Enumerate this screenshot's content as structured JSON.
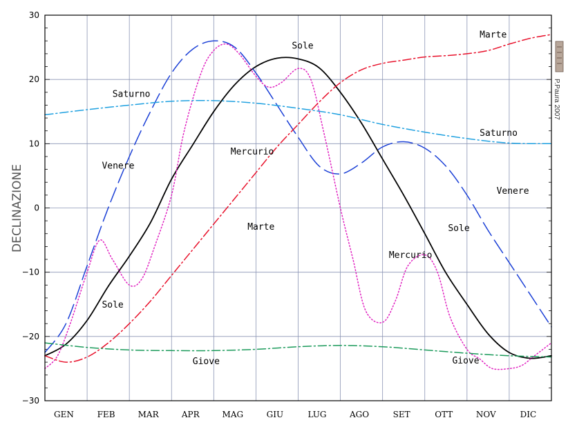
{
  "chart_data": {
    "type": "line",
    "title": "",
    "xlabel": "",
    "ylabel": "DECLINAZIONE",
    "ylim": [
      -30,
      30
    ],
    "xlim": [
      0,
      12
    ],
    "yticks": [
      30,
      20,
      10,
      0,
      -10,
      -20,
      -30
    ],
    "ytick_labels": [
      "30",
      "20",
      "10",
      "0",
      "−10",
      "−20",
      "−30"
    ],
    "months": [
      "GEN",
      "FEB",
      "MAR",
      "APR",
      "MAG",
      "GIU",
      "LUG",
      "AGO",
      "SET",
      "OTT",
      "NOV",
      "DIC"
    ],
    "grid": true,
    "credit": "P.Paura 2007",
    "series": [
      {
        "name": "Sole",
        "color": "#000000",
        "dash": "solid",
        "x": [
          0,
          0.5,
          1,
          1.5,
          2,
          2.5,
          3,
          3.5,
          4,
          4.5,
          5,
          5.5,
          6,
          6.5,
          7,
          7.5,
          8,
          8.5,
          9,
          9.5,
          10,
          10.5,
          11,
          11.5,
          12
        ],
        "y": [
          -23,
          -21.2,
          -17.5,
          -12.2,
          -7.5,
          -2.3,
          4.5,
          9.8,
          15,
          19.2,
          22,
          23.3,
          23.2,
          21.8,
          18,
          13.2,
          7.6,
          2,
          -4,
          -10.1,
          -15,
          -19.6,
          -22.5,
          -23.4,
          -23
        ]
      },
      {
        "name": "Venere",
        "color": "#1a3fd6",
        "dash": "long-dash",
        "x": [
          0,
          0.5,
          1,
          1.5,
          2,
          2.5,
          3,
          3.5,
          4,
          4.5,
          5,
          5.5,
          6,
          6.5,
          7,
          7.5,
          8,
          8.5,
          9,
          9.5,
          10,
          10.5,
          11,
          11.5,
          12
        ],
        "y": [
          -22.5,
          -18,
          -9,
          0,
          8,
          15,
          21,
          24.7,
          26,
          25,
          21,
          16,
          11,
          6.5,
          5.3,
          7,
          9.5,
          10.3,
          9.3,
          6.5,
          2,
          -3.5,
          -8.5,
          -13.5,
          -18.5
        ]
      },
      {
        "name": "Mercurio",
        "color": "#e020c0",
        "dash": "dotted",
        "x": [
          0,
          0.3,
          0.6,
          1,
          1.3,
          1.6,
          2,
          2.3,
          2.6,
          3,
          3.3,
          3.7,
          4,
          4.3,
          4.6,
          5,
          5.3,
          5.6,
          6,
          6.3,
          6.6,
          7,
          7.3,
          7.6,
          8,
          8.3,
          8.6,
          9,
          9.3,
          9.6,
          10,
          10.3,
          10.6,
          11,
          11.3,
          11.6,
          12
        ],
        "y": [
          -25,
          -23,
          -18,
          -10,
          -5,
          -8,
          -12,
          -11,
          -6,
          2,
          12,
          21,
          24.5,
          25.5,
          24,
          20.5,
          18.8,
          19.5,
          21.7,
          20,
          12,
          0,
          -8,
          -16,
          -17.8,
          -14.5,
          -9,
          -7.3,
          -10,
          -17,
          -22,
          -23.5,
          -25,
          -25,
          -24.5,
          -23,
          -21
        ]
      },
      {
        "name": "Marte",
        "color": "#e8102a",
        "dash": "dash-dot",
        "x": [
          0,
          0.5,
          1,
          1.5,
          2,
          2.5,
          3,
          3.5,
          4,
          4.5,
          5,
          5.5,
          6,
          6.5,
          7,
          7.5,
          8,
          8.5,
          9,
          9.5,
          10,
          10.5,
          11,
          11.5,
          12
        ],
        "y": [
          -23,
          -24,
          -23.2,
          -21,
          -18,
          -14.5,
          -10.5,
          -6.5,
          -2.5,
          1.5,
          5.5,
          9.5,
          13,
          16.5,
          19.5,
          21.5,
          22.5,
          23,
          23.5,
          23.7,
          24,
          24.5,
          25.5,
          26.4,
          27
        ]
      },
      {
        "name": "Saturno",
        "color": "#1ea0e0",
        "dash": "dash-dot",
        "x": [
          0,
          1,
          2,
          3,
          4,
          5,
          6,
          7,
          8,
          9,
          10,
          11,
          12
        ],
        "y": [
          14.5,
          15.3,
          16,
          16.6,
          16.7,
          16.3,
          15.5,
          14.5,
          13,
          11.8,
          10.8,
          10.1,
          10
        ]
      },
      {
        "name": "Giove",
        "color": "#1a9a5a",
        "dash": "dash-dot",
        "x": [
          0,
          1,
          2,
          3,
          4,
          5,
          6,
          7,
          8,
          9,
          10,
          11,
          12
        ],
        "y": [
          -21,
          -21.7,
          -22.1,
          -22.2,
          -22.2,
          -22,
          -21.6,
          -21.4,
          -21.6,
          -22.1,
          -22.6,
          -23,
          -23.2
        ]
      }
    ],
    "annotations": [
      {
        "text": "Sole",
        "x": 5.85,
        "y": 24.8
      },
      {
        "text": "Sole",
        "x": 9.55,
        "y": -3.6
      },
      {
        "text": "Sole",
        "x": 1.35,
        "y": -15.5
      },
      {
        "text": "Venere",
        "x": 1.35,
        "y": 6.1
      },
      {
        "text": "Venere",
        "x": 10.7,
        "y": 2.2
      },
      {
        "text": "Mercurio",
        "x": 4.4,
        "y": 8.3
      },
      {
        "text": "Mercurio",
        "x": 8.15,
        "y": -7.8
      },
      {
        "text": "Marte",
        "x": 4.8,
        "y": -3.4
      },
      {
        "text": "Marte",
        "x": 10.3,
        "y": 26.5
      },
      {
        "text": "Saturno",
        "x": 1.6,
        "y": 17.3
      },
      {
        "text": "Saturno",
        "x": 10.3,
        "y": 11.2
      },
      {
        "text": "Giove",
        "x": 3.5,
        "y": -24.3
      },
      {
        "text": "Giove",
        "x": 9.65,
        "y": -24.2
      }
    ]
  }
}
